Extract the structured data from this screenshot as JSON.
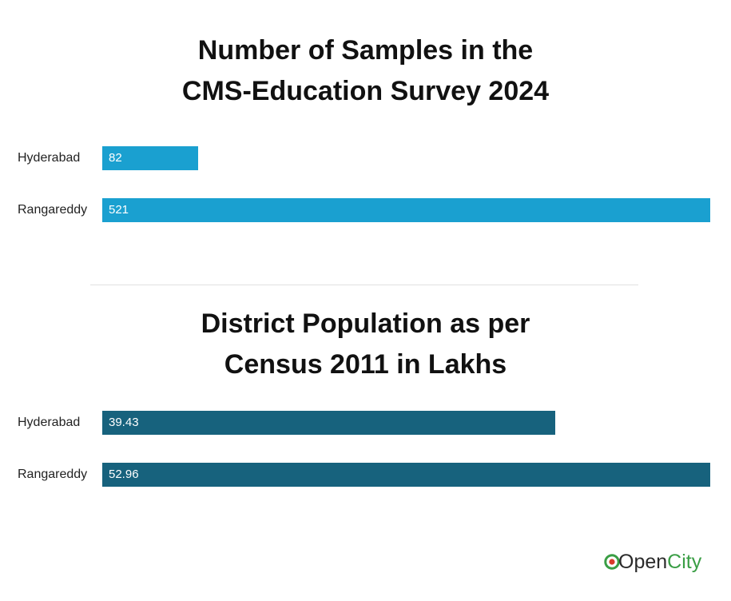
{
  "chart_data": [
    {
      "type": "bar",
      "orientation": "horizontal",
      "title_lines": [
        "Number of Samples in the",
        "CMS-Education Survey 2024"
      ],
      "categories": [
        "Hyderabad",
        "Rangareddy"
      ],
      "values": [
        82,
        521
      ],
      "value_labels": [
        "82",
        "521"
      ],
      "color": "#1aa0d0",
      "xlim": [
        0,
        521
      ],
      "grid": false
    },
    {
      "type": "bar",
      "orientation": "horizontal",
      "title_lines": [
        "District Population as per",
        "Census 2011 in Lakhs"
      ],
      "categories": [
        "Hyderabad",
        "Rangareddy"
      ],
      "values": [
        39.43,
        52.96
      ],
      "value_labels": [
        "39.43",
        "52.96"
      ],
      "color": "#17627d",
      "xlim": [
        0,
        52.96
      ],
      "grid": false
    }
  ],
  "logo": {
    "prefix": "Open",
    "suffix": "City",
    "icon": "opencity-o-icon",
    "accent": "#3a9e45",
    "dot": "#d93a2b"
  }
}
